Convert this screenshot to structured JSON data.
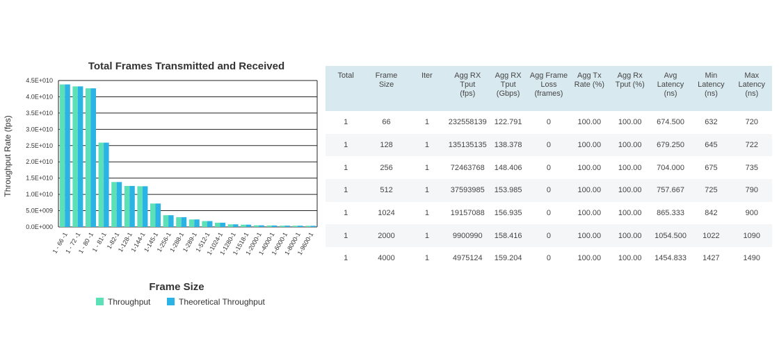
{
  "chart_data": {
    "type": "bar",
    "title": "Total Frames Transmitted and Received",
    "xlabel": "Frame Size",
    "ylabel": "Throughput Rate (fps)",
    "ylim": [
      0,
      45000000000
    ],
    "yticks": [
      0,
      5000000000,
      10000000000,
      15000000000,
      20000000000,
      25000000000,
      30000000000,
      35000000000,
      40000000000,
      45000000000
    ],
    "ytick_labels": [
      "0.0E+000",
      "5.0E+009",
      "1.0E+010",
      "1.5E+010",
      "2.0E+010",
      "2.5E+010",
      "3.0E+010",
      "3.5E+010",
      "4.0E+010",
      "4.5E+010"
    ],
    "categories": [
      "1 - 66 -1",
      "1 - 72 -1",
      "1 - 80 -1",
      "1 - 81-1",
      "1-82-1",
      "1-128-1",
      "1-144-1",
      "1-145-1",
      "1-256-1",
      "1-288-1",
      "1-289-1",
      "1-512-1",
      "1-1024-1",
      "1-1280-1",
      "1-1518-1",
      "1-2000-1",
      "1-4000-1",
      "1-6000-1",
      "1-8000-1",
      "1-9600-1"
    ],
    "series": [
      {
        "name": "Throughput",
        "color": "#5ce0b8",
        "values": [
          43800000000,
          43200000000,
          42600000000,
          25900000000,
          13800000000,
          12600000000,
          12500000000,
          7200000000,
          3600000000,
          3000000000,
          2300000000,
          1800000000,
          1300000000,
          800000000,
          700000000,
          500000000,
          450000000,
          400000000,
          380000000,
          350000000
        ]
      },
      {
        "name": "Theoretical Throughput",
        "color": "#2ab3e4",
        "values": [
          43800000000,
          43200000000,
          42600000000,
          25900000000,
          13800000000,
          12600000000,
          12500000000,
          7200000000,
          3600000000,
          3000000000,
          2300000000,
          1800000000,
          1300000000,
          800000000,
          700000000,
          500000000,
          450000000,
          400000000,
          380000000,
          350000000
        ]
      }
    ],
    "grid": true,
    "legend": "bottom"
  },
  "table": {
    "headers": [
      [
        "Total"
      ],
      [
        "Frame",
        "Size"
      ],
      [
        "Iter"
      ],
      [
        "Agg RX",
        "Tput",
        "(fps)"
      ],
      [
        "Agg RX",
        "Tput",
        "(Gbps)"
      ],
      [
        "Agg Frame",
        "Loss",
        "(frames)"
      ],
      [
        "Agg Tx",
        "Rate (%)"
      ],
      [
        "Agg Rx",
        "Tput (%)"
      ],
      [
        "Avg Latency",
        "(ns)"
      ],
      [
        "Min Latency",
        "(ns)"
      ],
      [
        "Max Latency",
        "(ns)"
      ]
    ],
    "rows": [
      [
        "1",
        "66",
        "1",
        "232558139",
        "122.791",
        "0",
        "100.00",
        "100.00",
        "674.500",
        "632",
        "720"
      ],
      [
        "1",
        "128",
        "1",
        "135135135",
        "138.378",
        "0",
        "100.00",
        "100.00",
        "679.250",
        "645",
        "722"
      ],
      [
        "1",
        "256",
        "1",
        "72463768",
        "148.406",
        "0",
        "100.00",
        "100.00",
        "704.000",
        "675",
        "735"
      ],
      [
        "1",
        "512",
        "1",
        "37593985",
        "153.985",
        "0",
        "100.00",
        "100.00",
        "757.667",
        "725",
        "790"
      ],
      [
        "1",
        "1024",
        "1",
        "19157088",
        "156.935",
        "0",
        "100.00",
        "100.00",
        "865.333",
        "842",
        "900"
      ],
      [
        "1",
        "2000",
        "1",
        "9900990",
        "158.416",
        "0",
        "100.00",
        "100.00",
        "1054.500",
        "1022",
        "1090"
      ],
      [
        "1",
        "4000",
        "1",
        "4975124",
        "159.204",
        "0",
        "100.00",
        "100.00",
        "1454.833",
        "1427",
        "1490"
      ]
    ]
  }
}
